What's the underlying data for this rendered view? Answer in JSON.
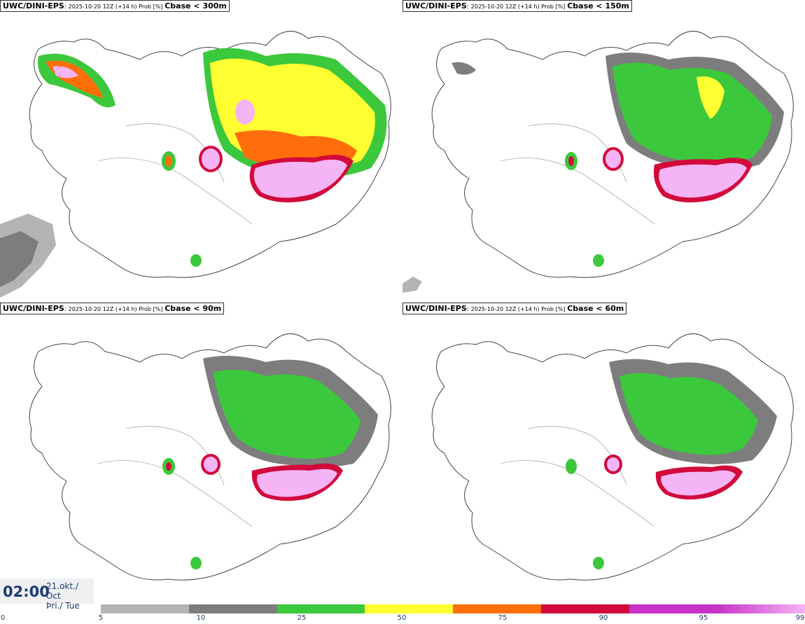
{
  "panels": [
    {
      "model": "UWC/DINI-EPS",
      "run": "2025-10-20 12Z (+14 h) Prob [%]",
      "variable": "Cbase < 300m"
    },
    {
      "model": "UWC/DINI-EPS",
      "run": "2025-10-20 12Z (+14 h) Prob [%]",
      "variable": "Cbase < 150m"
    },
    {
      "model": "UWC/DINI-EPS",
      "run": "2025-10-20 12Z (+14 h) Prob [%]",
      "variable": "Cbase < 90m"
    },
    {
      "model": "UWC/DINI-EPS",
      "run": "2025-10-20 12Z (+14 h) Prob [%]",
      "variable": "Cbase < 60m"
    }
  ],
  "valid_time": {
    "time": "02:00",
    "date": "21.okt./ Oct",
    "day": "Þri./ Tue"
  },
  "legend": {
    "ticks": [
      "0",
      "5",
      "10",
      "25",
      "50",
      "75",
      "90",
      "95",
      "99"
    ],
    "colors": [
      "#b4b4b4",
      "#7d7d7d",
      "#3cc83c",
      "#ffff32",
      "#ff6e0a",
      "#d20a3c",
      "#c832c8",
      "#f5b4f5"
    ]
  }
}
